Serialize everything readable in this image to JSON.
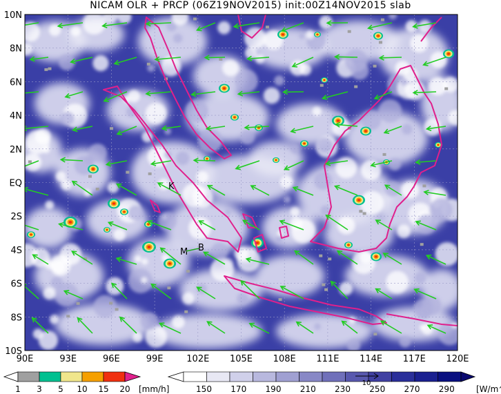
{
  "title": "NICAM OLR + PRCP (06Z19NOV2015) init:00Z14NOV2015 slab",
  "map": {
    "lat_labels": [
      "10N",
      "8N",
      "6N",
      "4N",
      "2N",
      "EQ",
      "2S",
      "4S",
      "6S",
      "8S",
      "10S"
    ],
    "lon_labels": [
      "90E",
      "93E",
      "96E",
      "99E",
      "102E",
      "105E",
      "108E",
      "111E",
      "114E",
      "117E",
      "120E"
    ],
    "station_labels": [
      "K",
      "M",
      "B"
    ],
    "colors": {
      "coast": "#e0208c",
      "wind": "#22cc22",
      "olr_dark": "#2a2f9a",
      "cloud": "#ffffff"
    }
  },
  "prcp_colorbar": {
    "ticks": [
      "1",
      "3",
      "5",
      "10",
      "15",
      "20"
    ],
    "unit": "[mm/h]",
    "colors": [
      "#a0a0a0",
      "#00c090",
      "#f0e68c",
      "#f5a000",
      "#f03010",
      "#e0208c"
    ]
  },
  "olr_colorbar": {
    "ticks": [
      "150",
      "170",
      "190",
      "210",
      "230",
      "250",
      "270",
      "290"
    ],
    "unit": "[W/m^2]",
    "colors": [
      "#ffffff",
      "#e8e8f4",
      "#d0d0ea",
      "#b8b8de",
      "#a0a0d2",
      "#8888c6",
      "#7070ba",
      "#5858ae",
      "#4040a2",
      "#2a2f9a",
      "#1a2090",
      "#0a1080"
    ]
  },
  "vector_ref_label": "10"
}
